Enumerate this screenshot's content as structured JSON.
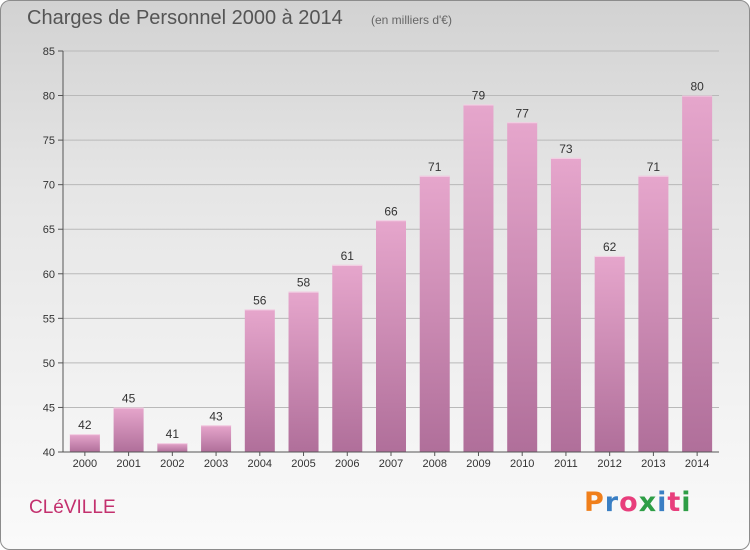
{
  "header": {
    "title": "Charges de Personnel 2000 à 2014",
    "subtitle": "(en milliers d'€)"
  },
  "footer": {
    "commune": "CLéVILLE",
    "logo": "Proxiti",
    "logo_letter_colors": [
      "#f07f1b",
      "#3a7fc4",
      "#e83e7c",
      "#2e9e46",
      "#3a7fc4",
      "#e83e7c",
      "#2e9e46"
    ]
  },
  "colors": {
    "bar_top": "#e6a6cc",
    "bar_bottom": "#b06f9a",
    "commune_text": "#c3306e"
  },
  "chart_data": {
    "type": "bar",
    "title": "Charges de Personnel 2000 à 2014",
    "subtitle": "(en milliers d'€)",
    "xlabel": "",
    "ylabel": "",
    "categories": [
      "2000",
      "2001",
      "2002",
      "2003",
      "2004",
      "2005",
      "2006",
      "2007",
      "2008",
      "2009",
      "2010",
      "2011",
      "2012",
      "2013",
      "2014"
    ],
    "values": [
      42,
      45,
      41,
      43,
      56,
      58,
      61,
      66,
      71,
      79,
      77,
      73,
      62,
      71,
      80
    ],
    "ylim": [
      40,
      85
    ],
    "yticks": [
      40,
      45,
      50,
      55,
      60,
      65,
      70,
      75,
      80,
      85
    ],
    "grid": true,
    "legend": "none"
  }
}
